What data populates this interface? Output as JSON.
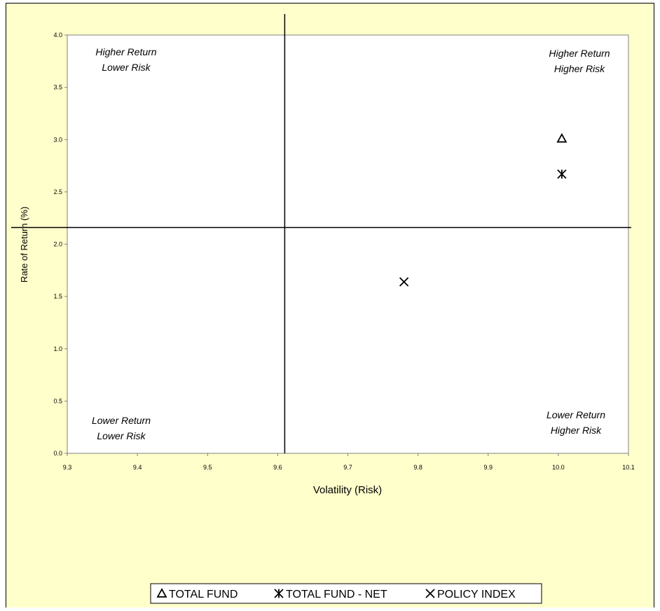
{
  "colors": {
    "background": "#FFFFCC",
    "plot_area": "#FFFFFF",
    "axis": "#808080",
    "marker": "#000000"
  },
  "chart_data": {
    "type": "scatter",
    "title": "",
    "xlabel": "Volatility (Risk)",
    "ylabel": "Rate of Return (%)",
    "xlim": [
      9.3,
      10.1
    ],
    "ylim": [
      0.0,
      4.0
    ],
    "x_ticks": [
      "9.3",
      "9.4",
      "9.5",
      "9.6",
      "9.7",
      "9.8",
      "9.9",
      "10.0",
      "10.1"
    ],
    "y_ticks": [
      "0.0",
      "0.5",
      "1.0",
      "1.5",
      "2.0",
      "2.5",
      "3.0",
      "3.5",
      "4.0"
    ],
    "grid": false,
    "divider_x": 9.61,
    "divider_y": 2.16,
    "quadrants": [
      {
        "line1": "Higher Return",
        "line2": "Lower Risk",
        "position": "top-left"
      },
      {
        "line1": "Higher Return",
        "line2": "Higher Risk",
        "position": "top-right"
      },
      {
        "line1": "Lower Return",
        "line2": "Lower Risk",
        "position": "bottom-left"
      },
      {
        "line1": "Lower Return",
        "line2": "Higher Risk",
        "position": "bottom-right"
      }
    ],
    "series": [
      {
        "name": "TOTAL FUND",
        "marker": "triangle",
        "x": 10.005,
        "y": 3.01
      },
      {
        "name": "TOTAL FUND - NET",
        "marker": "asterisk",
        "x": 10.005,
        "y": 2.67
      },
      {
        "name": "POLICY INDEX",
        "marker": "x",
        "x": 9.78,
        "y": 1.64
      }
    ],
    "legend": "bottom-center"
  }
}
